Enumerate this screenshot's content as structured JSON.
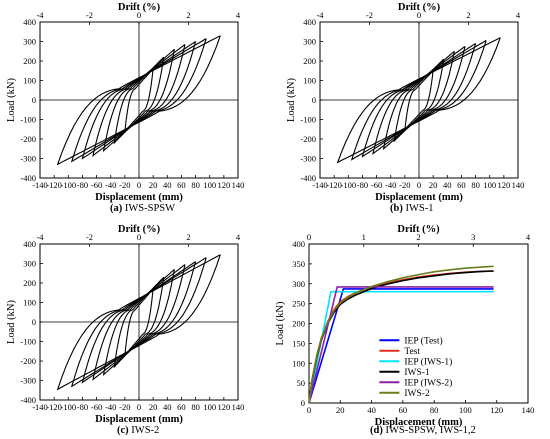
{
  "captions": {
    "a": {
      "tag": "(a)",
      "text": "IWS-SPSW"
    },
    "b": {
      "tag": "(b)",
      "text": "IWS-1"
    },
    "c": {
      "tag": "(c)",
      "text": "IWS-2"
    },
    "d": {
      "tag": "(d)",
      "text": "IWS-SPSW, IWS-1,2"
    }
  },
  "chart_data": [
    {
      "id": "a",
      "type": "line",
      "title": "",
      "xlabel": "Displacement (mm)",
      "ylabel": "Load (kN)",
      "x2label": "Drift (%)",
      "xlim": [
        -140,
        140
      ],
      "ylim": [
        -400,
        400
      ],
      "x2lim": [
        -4,
        4
      ],
      "xticks": [
        -140,
        -120,
        -100,
        -80,
        -60,
        -40,
        -20,
        0,
        20,
        40,
        60,
        80,
        100,
        120,
        140
      ],
      "yticks": [
        -400,
        -300,
        -200,
        -100,
        0,
        100,
        200,
        300,
        400
      ],
      "x2ticks": [
        -4,
        -2,
        0,
        2,
        4
      ],
      "hysteresis": {
        "peak_displacements_mm": [
          20,
          35,
          50,
          65,
          80,
          95,
          115
        ],
        "peak_loads_kN": [
          160,
          220,
          260,
          285,
          300,
          315,
          330
        ],
        "yield_load_kN": 60,
        "color": "#000000"
      }
    },
    {
      "id": "b",
      "type": "line",
      "title": "",
      "xlabel": "Displacement (mm)",
      "ylabel": "Load (kN)",
      "x2label": "Drift (%)",
      "xlim": [
        -140,
        140
      ],
      "ylim": [
        -400,
        400
      ],
      "x2lim": [
        -4,
        4
      ],
      "xticks": [
        -140,
        -120,
        -100,
        -80,
        -60,
        -40,
        -20,
        0,
        20,
        40,
        60,
        80,
        100,
        120,
        140
      ],
      "yticks": [
        -400,
        -300,
        -200,
        -100,
        0,
        100,
        200,
        300,
        400
      ],
      "x2ticks": [
        -4,
        -2,
        0,
        2,
        4
      ],
      "hysteresis": {
        "peak_displacements_mm": [
          20,
          35,
          50,
          65,
          80,
          95,
          115
        ],
        "peak_loads_kN": [
          150,
          210,
          250,
          275,
          290,
          305,
          320
        ],
        "yield_load_kN": 55,
        "color": "#000000"
      }
    },
    {
      "id": "c",
      "type": "line",
      "title": "",
      "xlabel": "Displacement (mm)",
      "ylabel": "Load (kN)",
      "x2label": "Drift (%)",
      "xlim": [
        -140,
        140
      ],
      "ylim": [
        -400,
        400
      ],
      "x2lim": [
        -4,
        4
      ],
      "xticks": [
        -140,
        -120,
        -100,
        -80,
        -60,
        -40,
        -20,
        0,
        20,
        40,
        60,
        80,
        100,
        120,
        140
      ],
      "yticks": [
        -400,
        -300,
        -200,
        -100,
        0,
        100,
        200,
        300,
        400
      ],
      "x2ticks": [
        -4,
        -2,
        0,
        2,
        4
      ],
      "hysteresis": {
        "peak_displacements_mm": [
          20,
          35,
          50,
          65,
          80,
          95,
          115
        ],
        "peak_loads_kN": [
          170,
          230,
          270,
          295,
          310,
          330,
          345
        ],
        "yield_load_kN": 65,
        "color": "#000000"
      }
    },
    {
      "id": "d",
      "type": "line",
      "title": "",
      "xlabel": "Displacement (mm)",
      "ylabel": "Load (kN)",
      "x2label": "Drift (%)",
      "xlim": [
        0,
        140
      ],
      "ylim": [
        0,
        400
      ],
      "x2lim": [
        0,
        4
      ],
      "xticks": [
        0,
        20,
        40,
        60,
        80,
        100,
        120,
        140
      ],
      "yticks": [
        0,
        50,
        100,
        150,
        200,
        250,
        300,
        350,
        400
      ],
      "x2ticks": [
        0,
        1,
        2,
        3,
        4
      ],
      "legend_position": "center-right",
      "series": [
        {
          "name": "IEP (Test)",
          "color": "#0000ff",
          "x": [
            0,
            22,
            118
          ],
          "y": [
            0,
            287,
            287
          ]
        },
        {
          "name": "Test",
          "color": "#e0301e",
          "x": [
            0,
            2,
            5,
            8,
            12,
            16,
            20,
            25,
            30,
            40,
            50,
            60,
            70,
            80,
            90,
            100,
            110,
            118
          ],
          "y": [
            0,
            60,
            120,
            165,
            205,
            235,
            255,
            268,
            278,
            292,
            302,
            310,
            317,
            322,
            326,
            329,
            331,
            332
          ]
        },
        {
          "name": "IEP (IWS-1)",
          "color": "#00e5ff",
          "x": [
            0,
            14,
            118
          ],
          "y": [
            0,
            280,
            280
          ]
        },
        {
          "name": "IWS-1",
          "color": "#000000",
          "x": [
            0,
            2,
            5,
            8,
            12,
            16,
            20,
            25,
            30,
            40,
            50,
            60,
            70,
            80,
            90,
            100,
            110,
            118
          ],
          "y": [
            0,
            55,
            115,
            160,
            200,
            228,
            248,
            262,
            272,
            288,
            299,
            308,
            315,
            320,
            325,
            328,
            331,
            332
          ]
        },
        {
          "name": "IEP (IWS-2)",
          "color": "#8b1fa9",
          "x": [
            0,
            18,
            118
          ],
          "y": [
            0,
            292,
            292
          ]
        },
        {
          "name": "IWS-2",
          "color": "#6b7d1d",
          "x": [
            0,
            2,
            5,
            8,
            12,
            16,
            20,
            25,
            30,
            40,
            50,
            60,
            70,
            80,
            90,
            100,
            110,
            118
          ],
          "y": [
            0,
            58,
            118,
            163,
            203,
            232,
            252,
            266,
            277,
            293,
            305,
            315,
            323,
            330,
            335,
            339,
            342,
            344
          ]
        }
      ]
    }
  ]
}
